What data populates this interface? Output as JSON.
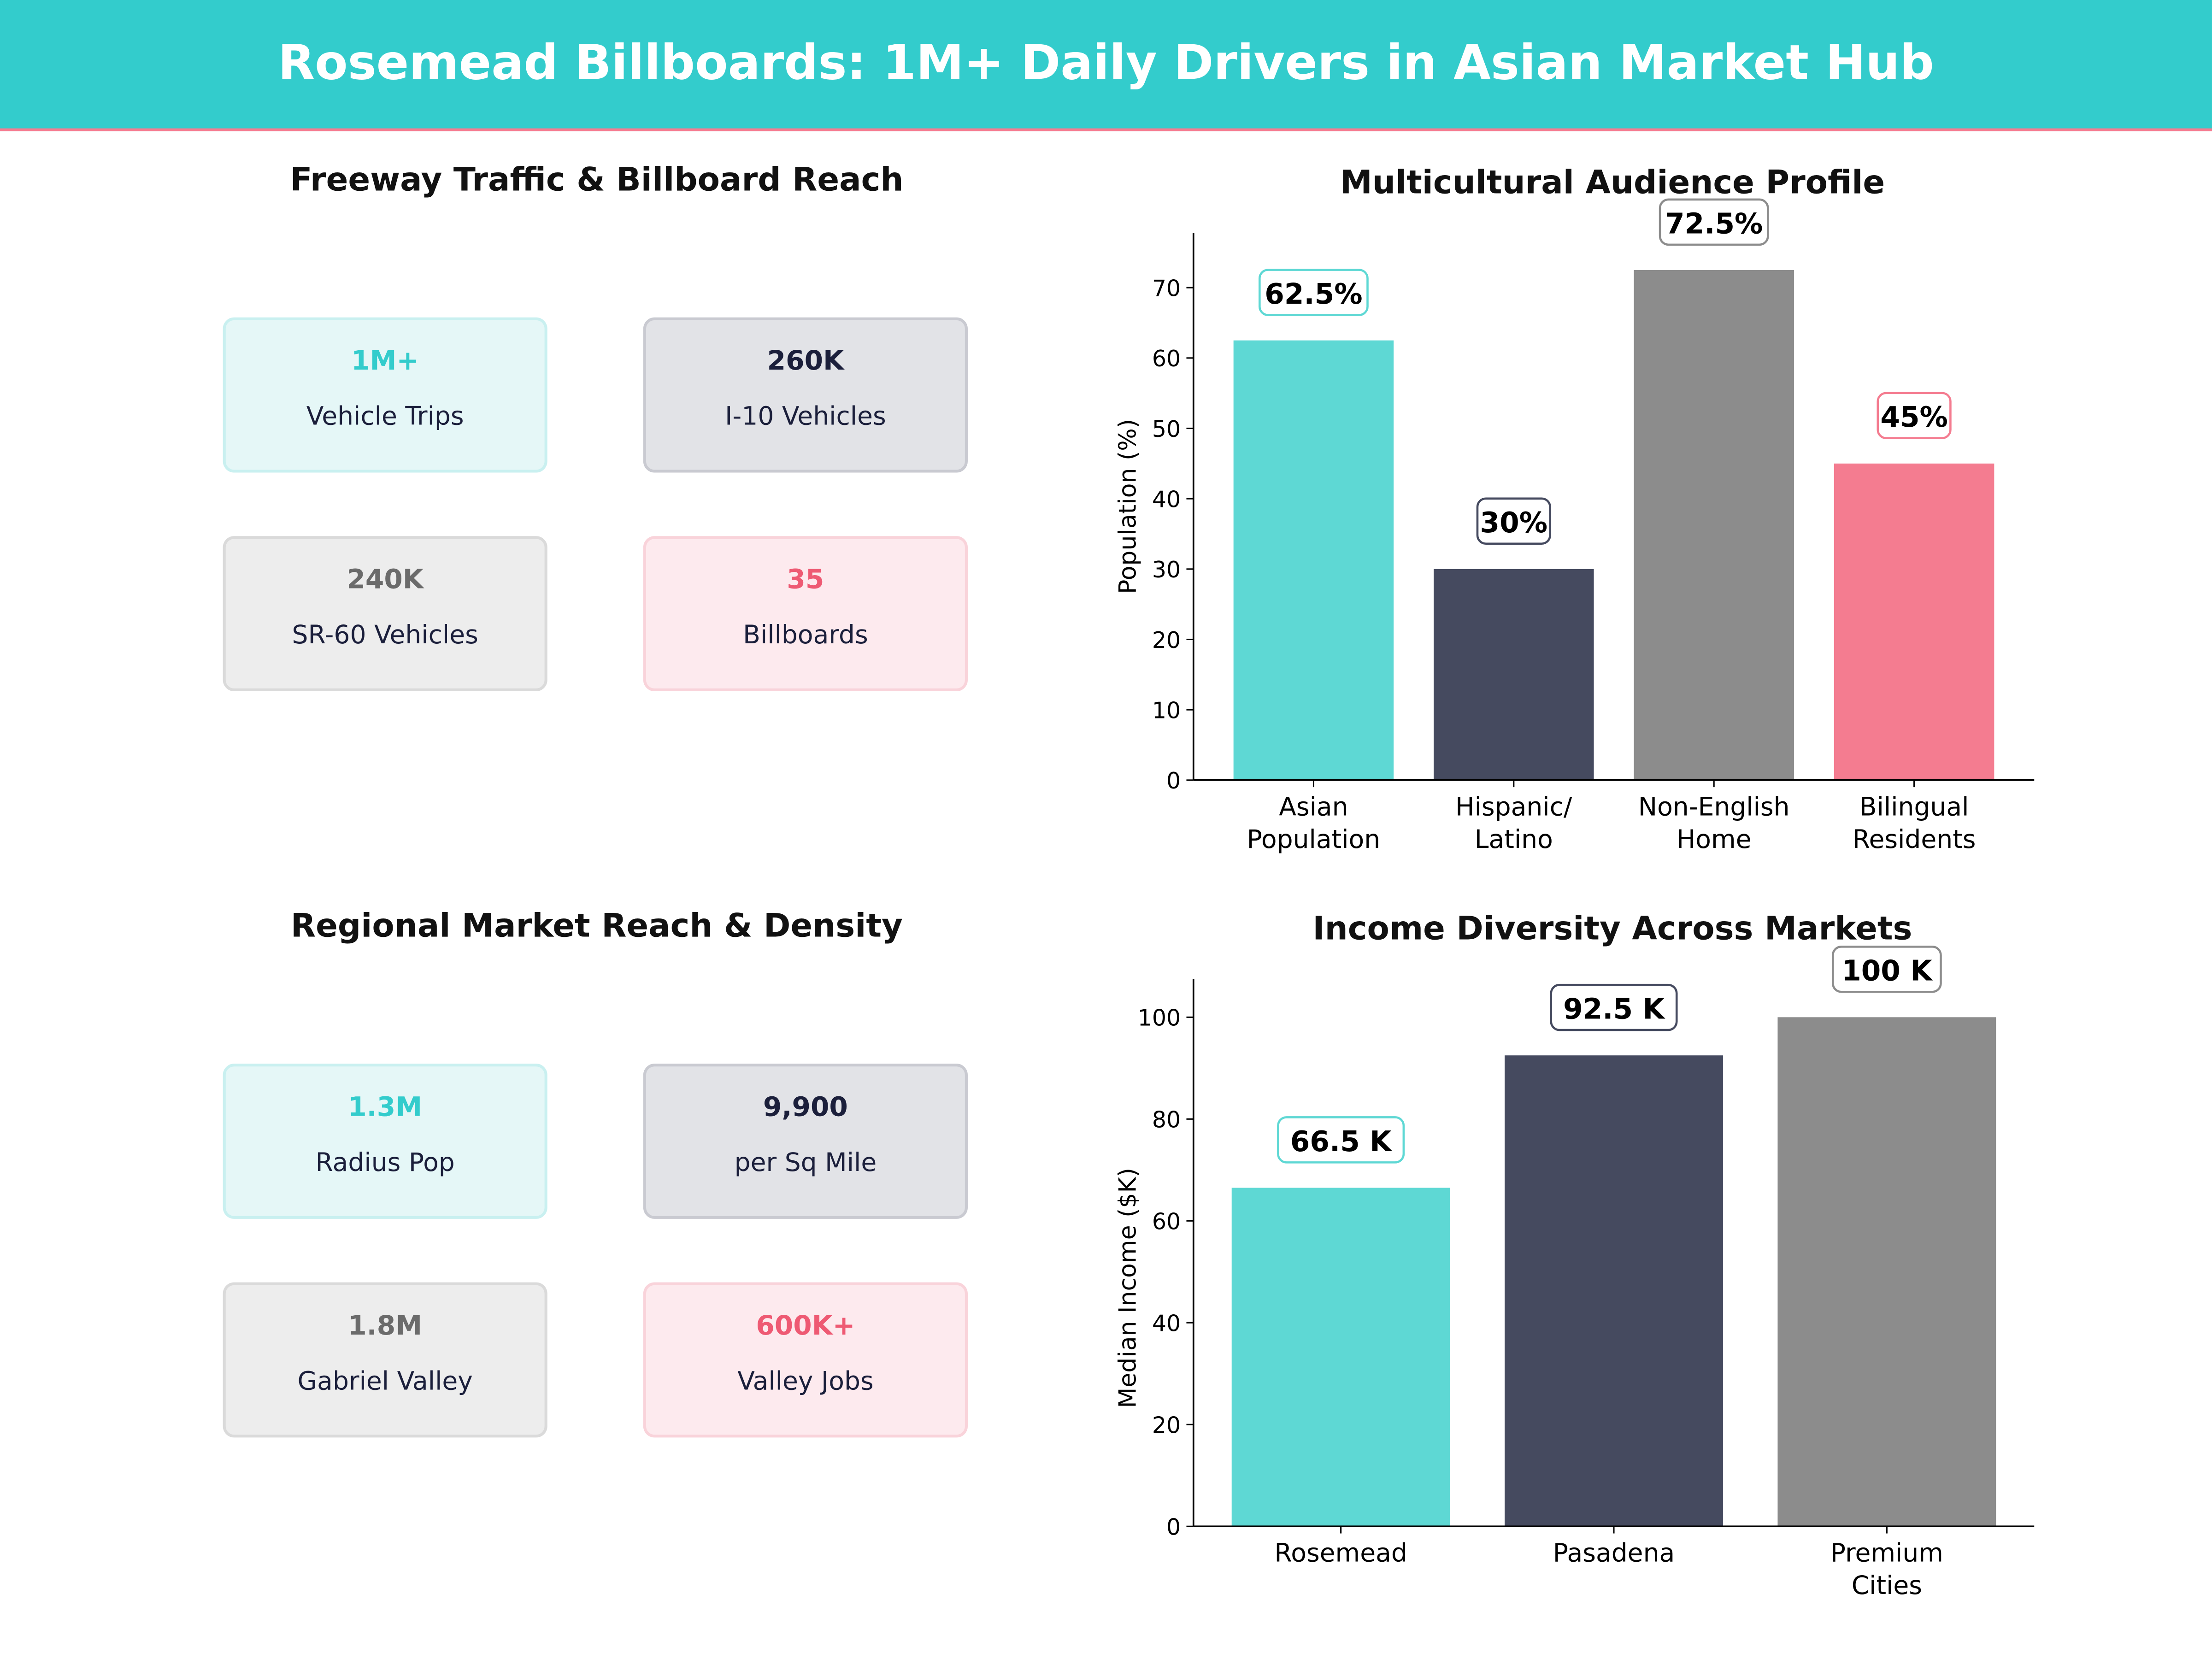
{
  "header": {
    "title": "Rosemead Billboards: 1M+ Daily Drivers in Asian Market Hub",
    "color": "#33CCCC"
  },
  "panels": {
    "traffic": {
      "title": "Freeway Traffic & Billboard Reach",
      "cards": [
        {
          "value": "1M+",
          "label": "Vehicle Trips",
          "theme": "teal"
        },
        {
          "value": "260K",
          "label": "I-10  Vehicles",
          "theme": "dark"
        },
        {
          "value": "240K",
          "label": "SR-60  Vehicles",
          "theme": "gray"
        },
        {
          "value": "35",
          "label": "Billboards",
          "theme": "pink"
        }
      ]
    },
    "regional": {
      "title": "Regional Market Reach & Density",
      "cards": [
        {
          "value": "1.3M",
          "label": "Radius Pop",
          "theme": "teal"
        },
        {
          "value": "9,900",
          "label": "per Sq Mile",
          "theme": "dark"
        },
        {
          "value": "1.8M",
          "label": "Gabriel Valley",
          "theme": "gray"
        },
        {
          "value": "600K+",
          "label": "Valley Jobs",
          "theme": "pink"
        }
      ]
    }
  },
  "themes": {
    "teal": {
      "bg": "#E5F7F7",
      "border": "#C9F0F0",
      "value": "#33CCCC"
    },
    "dark": {
      "bg": "#E2E3E7",
      "border": "#C9CAD1",
      "value": "#1B1F3B"
    },
    "gray": {
      "bg": "#EDEDED",
      "border": "#DADADA",
      "value": "#6B6B6B"
    },
    "pink": {
      "bg": "#FDEAEE",
      "border": "#F9D3DA",
      "value": "#EE5A73"
    }
  },
  "chart_data": [
    {
      "type": "bar",
      "title": "Multicultural Audience Profile",
      "categories": [
        "Asian\nPopulation",
        "Hispanic/\nLatino",
        "Non-English\nHome",
        "Bilingual\nResidents"
      ],
      "values": [
        62.5,
        30,
        72.5,
        45
      ],
      "data_labels": [
        "62.5%",
        "30%",
        "72.5%",
        "45%"
      ],
      "colors": [
        "#5ED8D4",
        "#454A5F",
        "#8C8C8C",
        "#F47C90"
      ],
      "xlabel": "",
      "ylabel": "Population (%)",
      "ylim": [
        0,
        77.8
      ],
      "yticks": [
        0,
        10,
        20,
        30,
        40,
        50,
        60,
        70
      ],
      "grid": false
    },
    {
      "type": "bar",
      "title": "Income Diversity Across Markets",
      "categories": [
        "Rosemead",
        "Pasadena",
        "Premium\nCities"
      ],
      "values": [
        66.5,
        92.5,
        100
      ],
      "data_labels": [
        "66.5 K",
        "92.5 K",
        "100 K"
      ],
      "colors": [
        "#5ED8D4",
        "#454A5F",
        "#8C8C8C"
      ],
      "xlabel": "",
      "ylabel": "Median Income ($K)",
      "ylim": [
        0,
        107.5
      ],
      "yticks": [
        0,
        20,
        40,
        60,
        80,
        100
      ],
      "grid": false
    }
  ]
}
